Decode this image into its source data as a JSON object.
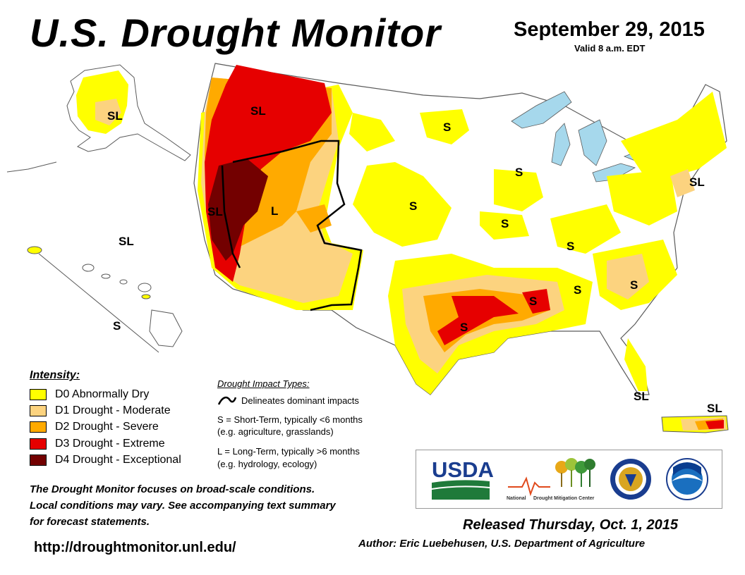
{
  "header": {
    "title": "U.S. Drought Monitor",
    "date": "September 29, 2015",
    "valid": "Valid 8 a.m. EDT"
  },
  "colors": {
    "D0": "#ffff00",
    "D1": "#fcd37f",
    "D2": "#ffaa00",
    "D3": "#e60000",
    "D4": "#730000",
    "water": "#a6d8ec",
    "border": "#5a5a5a"
  },
  "map_labels": {
    "sl_alaska": "SL",
    "sl_northwest": "SL",
    "sl_california": "SL",
    "l_nevada": "L",
    "s_northdakota": "S",
    "s_minnesota": "S",
    "s_nebraska": "S",
    "s_missouri": "S",
    "s_kentucky": "S",
    "s_arkansas": "S",
    "s_texas": "S",
    "s_alabama": "S",
    "s_carolinas": "S",
    "sl_newengland": "SL",
    "sl_hawaii": "SL",
    "s_hawaii": "S",
    "sl_florida": "SL",
    "sl_puertorico": "SL"
  },
  "legend": {
    "heading": "Intensity:",
    "items": [
      {
        "code": "D0",
        "label": "D0 Abnormally Dry",
        "color": "#ffff00"
      },
      {
        "code": "D1",
        "label": "D1 Drought - Moderate",
        "color": "#fcd37f"
      },
      {
        "code": "D2",
        "label": "D2 Drought - Severe",
        "color": "#ffaa00"
      },
      {
        "code": "D3",
        "label": "D3 Drought - Extreme",
        "color": "#e60000"
      },
      {
        "code": "D4",
        "label": "D4 Drought - Exceptional",
        "color": "#730000"
      }
    ]
  },
  "impact": {
    "heading": "Drought Impact Types:",
    "delineates": "Delineates dominant impacts",
    "short_term_1": "S = Short-Term, typically <6 months",
    "short_term_2": "(e.g. agriculture, grasslands)",
    "long_term_1": "L = Long-Term, typically >6 months",
    "long_term_2": "(e.g. hydrology, ecology)"
  },
  "logos": {
    "usda": "USDA",
    "ndmc_1": "National",
    "ndmc_2": "Drought Mitigation Center"
  },
  "footer": {
    "note_1": "The Drought Monitor focuses on broad-scale conditions.",
    "note_2": "Local conditions may vary. See accompanying text summary",
    "note_3": "for forecast statements.",
    "url": "http://droughtmonitor.unl.edu/",
    "released": "Released Thursday, Oct. 1, 2015",
    "author": "Author: Eric Luebehusen, U.S. Department of Agriculture"
  }
}
